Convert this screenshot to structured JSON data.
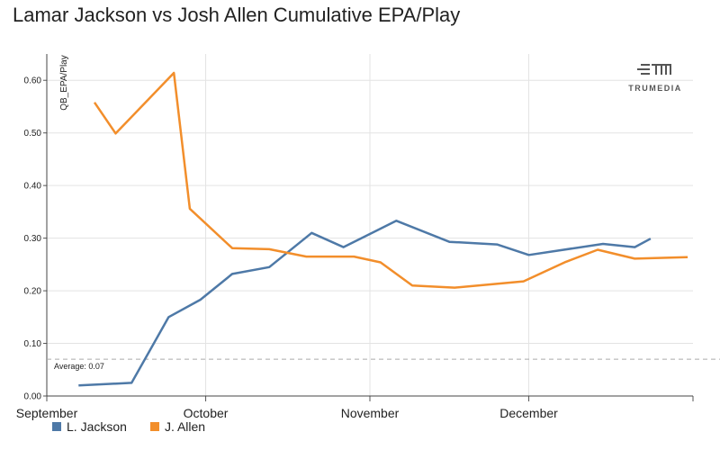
{
  "chart_data": {
    "type": "line",
    "title": "Lamar Jackson vs Josh Allen Cumulative EPA/Play",
    "ylabel": "QB_EPA/Play",
    "xlabel": "",
    "ylim": [
      0,
      0.65
    ],
    "yticks": [
      "0.00",
      "0.10",
      "0.20",
      "0.30",
      "0.40",
      "0.50",
      "0.60"
    ],
    "x_axis": {
      "start": "2023-09-01",
      "end": "2024-01-01",
      "tick_labels": [
        {
          "label": "September",
          "date": "2023-09-01"
        },
        {
          "label": "October",
          "date": "2023-10-01"
        },
        {
          "label": "November",
          "date": "2023-11-01"
        },
        {
          "label": "December",
          "date": "2023-12-01"
        }
      ]
    },
    "grid": true,
    "legend_position": "bottom-left",
    "average": {
      "label": "Average: 0.07",
      "value": 0.07
    },
    "series": [
      {
        "name": "L. Jackson",
        "color": "#4e79a7",
        "points": [
          {
            "x": "2023-09-07",
            "y": 0.02
          },
          {
            "x": "2023-09-17",
            "y": 0.025
          },
          {
            "x": "2023-09-24",
            "y": 0.15
          },
          {
            "x": "2023-09-30",
            "y": 0.183
          },
          {
            "x": "2023-10-06",
            "y": 0.232
          },
          {
            "x": "2023-10-13",
            "y": 0.245
          },
          {
            "x": "2023-10-21",
            "y": 0.31
          },
          {
            "x": "2023-10-27",
            "y": 0.283
          },
          {
            "x": "2023-11-06",
            "y": 0.333
          },
          {
            "x": "2023-11-16",
            "y": 0.293
          },
          {
            "x": "2023-11-25",
            "y": 0.288
          },
          {
            "x": "2023-12-01",
            "y": 0.268
          },
          {
            "x": "2023-12-15",
            "y": 0.289
          },
          {
            "x": "2023-12-21",
            "y": 0.283
          },
          {
            "x": "2023-12-24",
            "y": 0.299
          }
        ]
      },
      {
        "name": "J. Allen",
        "color": "#f28e2b",
        "points": [
          {
            "x": "2023-09-10",
            "y": 0.558
          },
          {
            "x": "2023-09-14",
            "y": 0.499
          },
          {
            "x": "2023-09-25",
            "y": 0.614
          },
          {
            "x": "2023-09-28",
            "y": 0.356
          },
          {
            "x": "2023-10-06",
            "y": 0.281
          },
          {
            "x": "2023-10-13",
            "y": 0.279
          },
          {
            "x": "2023-10-20",
            "y": 0.265
          },
          {
            "x": "2023-10-29",
            "y": 0.265
          },
          {
            "x": "2023-11-03",
            "y": 0.254
          },
          {
            "x": "2023-11-09",
            "y": 0.21
          },
          {
            "x": "2023-11-17",
            "y": 0.206
          },
          {
            "x": "2023-11-30",
            "y": 0.218
          },
          {
            "x": "2023-12-08",
            "y": 0.255
          },
          {
            "x": "2023-12-14",
            "y": 0.278
          },
          {
            "x": "2023-12-21",
            "y": 0.261
          },
          {
            "x": "2023-12-31",
            "y": 0.264
          }
        ]
      }
    ]
  },
  "logo": {
    "text": "TRUMEDIA",
    "icon": "trumedia-logo-icon"
  }
}
